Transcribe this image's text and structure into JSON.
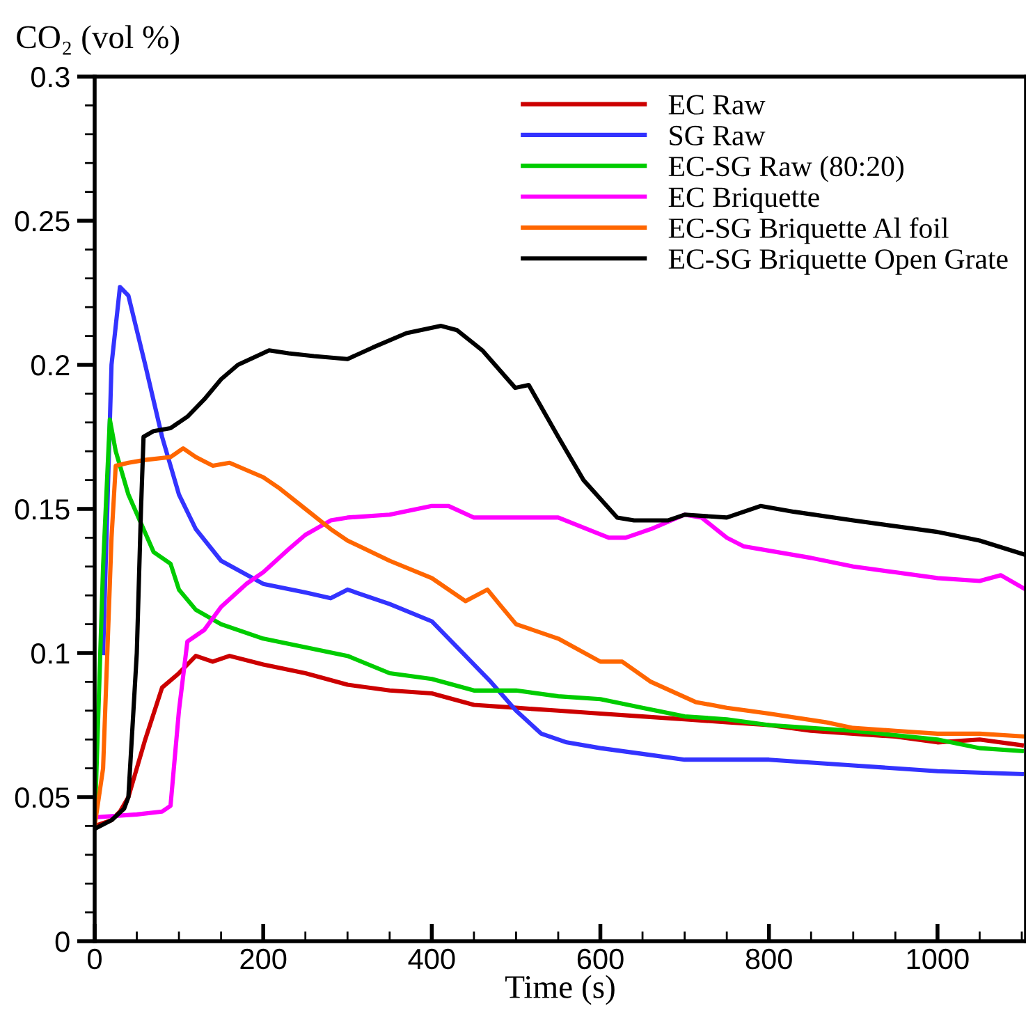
{
  "chart_data": {
    "type": "line",
    "ylabel": "CO₂ (vol %)",
    "xlabel": "Time (s)",
    "xlim": [
      0,
      1105
    ],
    "ylim": [
      0,
      0.3
    ],
    "xticks": [
      0,
      {
        "value": 50,
        "label": null
      },
      200,
      {
        "value": 100,
        "label": null
      },
      {
        "value": 150,
        "label": null
      },
      {
        "value": 250,
        "label": null
      },
      {
        "value": 300,
        "label": null
      },
      {
        "value": 350,
        "label": null
      },
      400,
      {
        "value": 450,
        "label": null
      },
      {
        "value": 500,
        "label": null
      },
      {
        "value": 550,
        "label": null
      },
      600,
      {
        "value": 650,
        "label": null
      },
      {
        "value": 700,
        "label": null
      },
      {
        "value": 750,
        "label": null
      },
      800,
      {
        "value": 850,
        "label": null
      },
      {
        "value": 900,
        "label": null
      },
      {
        "value": 950,
        "label": null
      },
      1000,
      {
        "value": 1050,
        "label": null
      },
      {
        "value": 1100,
        "label": null
      }
    ],
    "yticks": [
      0,
      {
        "value": 0.01,
        "label": null
      },
      {
        "value": 0.02,
        "label": null
      },
      {
        "value": 0.03,
        "label": null
      },
      {
        "value": 0.04,
        "label": null
      },
      0.05,
      {
        "value": 0.06,
        "label": null
      },
      {
        "value": 0.07,
        "label": null
      },
      {
        "value": 0.08,
        "label": null
      },
      {
        "value": 0.09,
        "label": null
      },
      0.1,
      {
        "value": 0.11,
        "label": null
      },
      {
        "value": 0.12,
        "label": null
      },
      {
        "value": 0.13,
        "label": null
      },
      {
        "value": 0.14,
        "label": null
      },
      0.15,
      {
        "value": 0.16,
        "label": null
      },
      {
        "value": 0.17,
        "label": null
      },
      {
        "value": 0.18,
        "label": null
      },
      {
        "value": 0.19,
        "label": null
      },
      0.2,
      {
        "value": 0.21,
        "label": null
      },
      {
        "value": 0.22,
        "label": null
      },
      {
        "value": 0.23,
        "label": null
      },
      {
        "value": 0.24,
        "label": null
      },
      0.25,
      {
        "value": 0.26,
        "label": null
      },
      {
        "value": 0.27,
        "label": null
      },
      {
        "value": 0.28,
        "label": null
      },
      {
        "value": 0.29,
        "label": null
      },
      0.3
    ],
    "grid": false,
    "legend": "top right",
    "marker": "none",
    "line_style": "solid",
    "series": [
      {
        "name": "EC Raw",
        "color": "#cc0000",
        "x": [
          0,
          20,
          30,
          40,
          60,
          80,
          100,
          120,
          140,
          160,
          200,
          250,
          300,
          350,
          400,
          450,
          500,
          550,
          600,
          650,
          700,
          750,
          800,
          850,
          900,
          950,
          1000,
          1050,
          1100
        ],
        "values": [
          0.04,
          0.042,
          0.045,
          0.05,
          0.07,
          0.088,
          0.093,
          0.099,
          0.097,
          0.099,
          0.096,
          0.093,
          0.089,
          0.087,
          0.086,
          0.082,
          0.081,
          0.08,
          0.079,
          0.078,
          0.077,
          0.076,
          0.075,
          0.073,
          0.072,
          0.071,
          0.069,
          0.07,
          0.068
        ]
      },
      {
        "name": "SG Raw",
        "color": "#3333ff",
        "x": [
          10,
          20,
          30,
          40,
          60,
          80,
          100,
          120,
          150,
          200,
          250,
          280,
          300,
          350,
          400,
          430,
          470,
          500,
          530,
          560,
          600,
          650,
          700,
          800,
          900,
          1000,
          1100
        ],
        "values": [
          0.1,
          0.2,
          0.227,
          0.224,
          0.2,
          0.175,
          0.155,
          0.143,
          0.132,
          0.124,
          0.121,
          0.119,
          0.122,
          0.117,
          0.111,
          0.102,
          0.09,
          0.08,
          0.072,
          0.069,
          0.067,
          0.065,
          0.063,
          0.063,
          0.061,
          0.059,
          0.058
        ]
      },
      {
        "name": "EC-SG Raw (80:20)",
        "color": "#00cc00",
        "x": [
          0,
          10,
          18,
          25,
          40,
          55,
          70,
          90,
          100,
          120,
          150,
          200,
          250,
          300,
          350,
          400,
          450,
          500,
          550,
          600,
          650,
          700,
          750,
          800,
          900,
          1000,
          1050,
          1100
        ],
        "values": [
          0.04,
          0.13,
          0.181,
          0.17,
          0.155,
          0.145,
          0.135,
          0.131,
          0.122,
          0.115,
          0.11,
          0.105,
          0.102,
          0.099,
          0.093,
          0.091,
          0.087,
          0.087,
          0.085,
          0.084,
          0.081,
          0.078,
          0.077,
          0.075,
          0.073,
          0.07,
          0.067,
          0.066
        ]
      },
      {
        "name": "EC Briquette",
        "color": "#ff00ff",
        "x": [
          0,
          50,
          80,
          90,
          100,
          110,
          130,
          150,
          180,
          200,
          230,
          250,
          280,
          300,
          350,
          400,
          420,
          450,
          500,
          550,
          610,
          630,
          660,
          700,
          720,
          750,
          770,
          850,
          900,
          950,
          1000,
          1050,
          1075,
          1105
        ],
        "values": [
          0.043,
          0.044,
          0.045,
          0.047,
          0.08,
          0.104,
          0.108,
          0.116,
          0.124,
          0.128,
          0.136,
          0.141,
          0.146,
          0.147,
          0.148,
          0.151,
          0.151,
          0.147,
          0.147,
          0.147,
          0.14,
          0.14,
          0.143,
          0.148,
          0.147,
          0.14,
          0.137,
          0.133,
          0.13,
          0.128,
          0.126,
          0.125,
          0.127,
          0.122
        ]
      },
      {
        "name": "EC-SG Briquette Al foil",
        "color": "#ff6600",
        "x": [
          0,
          10,
          20,
          25,
          40,
          60,
          90,
          105,
          120,
          140,
          160,
          200,
          220,
          250,
          280,
          300,
          350,
          400,
          440,
          466,
          480,
          500,
          550,
          600,
          626,
          660,
          713,
          750,
          800,
          867,
          900,
          950,
          1000,
          1050,
          1105
        ],
        "values": [
          0.04,
          0.06,
          0.14,
          0.165,
          0.166,
          0.167,
          0.168,
          0.171,
          0.168,
          0.165,
          0.166,
          0.161,
          0.157,
          0.15,
          0.143,
          0.139,
          0.132,
          0.126,
          0.118,
          0.122,
          0.117,
          0.11,
          0.105,
          0.097,
          0.097,
          0.09,
          0.083,
          0.081,
          0.079,
          0.076,
          0.074,
          0.073,
          0.072,
          0.072,
          0.071
        ]
      },
      {
        "name": "EC-SG Briquette Open Grate",
        "color": "#000000",
        "x": [
          0,
          20,
          35,
          40,
          50,
          55,
          58,
          70,
          90,
          110,
          130,
          150,
          170,
          207,
          230,
          260,
          300,
          330,
          370,
          411,
          430,
          460,
          499,
          515,
          550,
          580,
          620,
          640,
          680,
          700,
          750,
          790,
          830,
          900,
          1000,
          1050,
          1105
        ],
        "values": [
          0.039,
          0.042,
          0.046,
          0.05,
          0.1,
          0.15,
          0.175,
          0.177,
          0.178,
          0.182,
          0.188,
          0.195,
          0.2,
          0.205,
          0.204,
          0.203,
          0.202,
          0.206,
          0.211,
          0.2135,
          0.212,
          0.205,
          0.192,
          0.193,
          0.175,
          0.16,
          0.147,
          0.146,
          0.146,
          0.148,
          0.147,
          0.151,
          0.149,
          0.146,
          0.142,
          0.139,
          0.134
        ]
      }
    ]
  }
}
